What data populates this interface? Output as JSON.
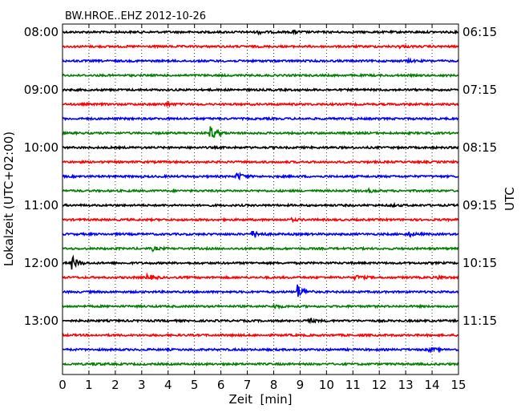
{
  "chart_data": {
    "type": "line",
    "title": "BW.HROE..EHZ 2012-10-26",
    "xlabel": "Zeit  [min]",
    "ylabel_left": "Lokalzeit (UTC+02:00)",
    "ylabel_right": "UTC",
    "xlim": [
      0,
      15
    ],
    "x_ticks": [
      "0",
      "1",
      "2",
      "3",
      "4",
      "5",
      "6",
      "7",
      "8",
      "9",
      "10",
      "11",
      "12",
      "13",
      "14",
      "15"
    ],
    "left_time_labels": [
      "08:00",
      "09:00",
      "10:00",
      "11:00",
      "12:00",
      "13:00"
    ],
    "right_time_labels": [
      "06:15",
      "07:15",
      "08:15",
      "09:15",
      "10:15",
      "11:15"
    ],
    "minutes_per_trace": 15,
    "grid": "vertical dotted at each minute",
    "trace_colors": [
      "#000000",
      "#ff0000",
      "#0000ff",
      "#008000"
    ],
    "traces": [
      {
        "index": 0,
        "events": [
          {
            "x": 7.4,
            "amplitude": 0.6
          },
          {
            "x": 8.7,
            "amplitude": 0.6
          }
        ]
      },
      {
        "index": 1,
        "events": [
          {
            "x": 12.7,
            "amplitude": 0.5
          }
        ]
      },
      {
        "index": 2,
        "events": [
          {
            "x": 13.1,
            "amplitude": 0.4
          }
        ]
      },
      {
        "index": 3,
        "events": []
      },
      {
        "index": 4,
        "events": []
      },
      {
        "index": 5,
        "events": [
          {
            "x": 3.9,
            "amplitude": 0.6
          }
        ]
      },
      {
        "index": 6,
        "events": []
      },
      {
        "index": 7,
        "events": [
          {
            "x": 5.6,
            "amplitude": 3.0
          }
        ]
      },
      {
        "index": 8,
        "events": []
      },
      {
        "index": 9,
        "events": []
      },
      {
        "index": 10,
        "events": [
          {
            "x": 6.6,
            "amplitude": 1.6
          }
        ]
      },
      {
        "index": 11,
        "events": [
          {
            "x": 11.6,
            "amplitude": 0.5
          }
        ]
      },
      {
        "index": 12,
        "events": [
          {
            "x": 12.4,
            "amplitude": 0.4
          }
        ]
      },
      {
        "index": 13,
        "events": [
          {
            "x": 8.6,
            "amplitude": 0.6
          }
        ]
      },
      {
        "index": 14,
        "events": [
          {
            "x": 7.2,
            "amplitude": 1.8
          },
          {
            "x": 13.1,
            "amplitude": 1.0
          }
        ]
      },
      {
        "index": 15,
        "events": [
          {
            "x": 3.4,
            "amplitude": 0.8
          }
        ]
      },
      {
        "index": 16,
        "events": [
          {
            "x": 0.35,
            "amplitude": 2.8
          }
        ]
      },
      {
        "index": 17,
        "events": [
          {
            "x": 3.2,
            "amplitude": 1.3
          },
          {
            "x": 11.1,
            "amplitude": 0.9
          },
          {
            "x": 14.2,
            "amplitude": 0.6
          }
        ]
      },
      {
        "index": 18,
        "events": [
          {
            "x": 8.9,
            "amplitude": 3.0
          }
        ]
      },
      {
        "index": 19,
        "events": [
          {
            "x": 8.0,
            "amplitude": 0.8
          }
        ]
      },
      {
        "index": 20,
        "events": [
          {
            "x": 9.3,
            "amplitude": 1.0
          }
        ]
      },
      {
        "index": 21,
        "events": []
      },
      {
        "index": 22,
        "events": [
          {
            "x": 13.9,
            "amplitude": 0.9
          }
        ]
      },
      {
        "index": 23,
        "events": [
          {
            "x": 1.1,
            "amplitude": 0.5
          }
        ]
      }
    ]
  }
}
